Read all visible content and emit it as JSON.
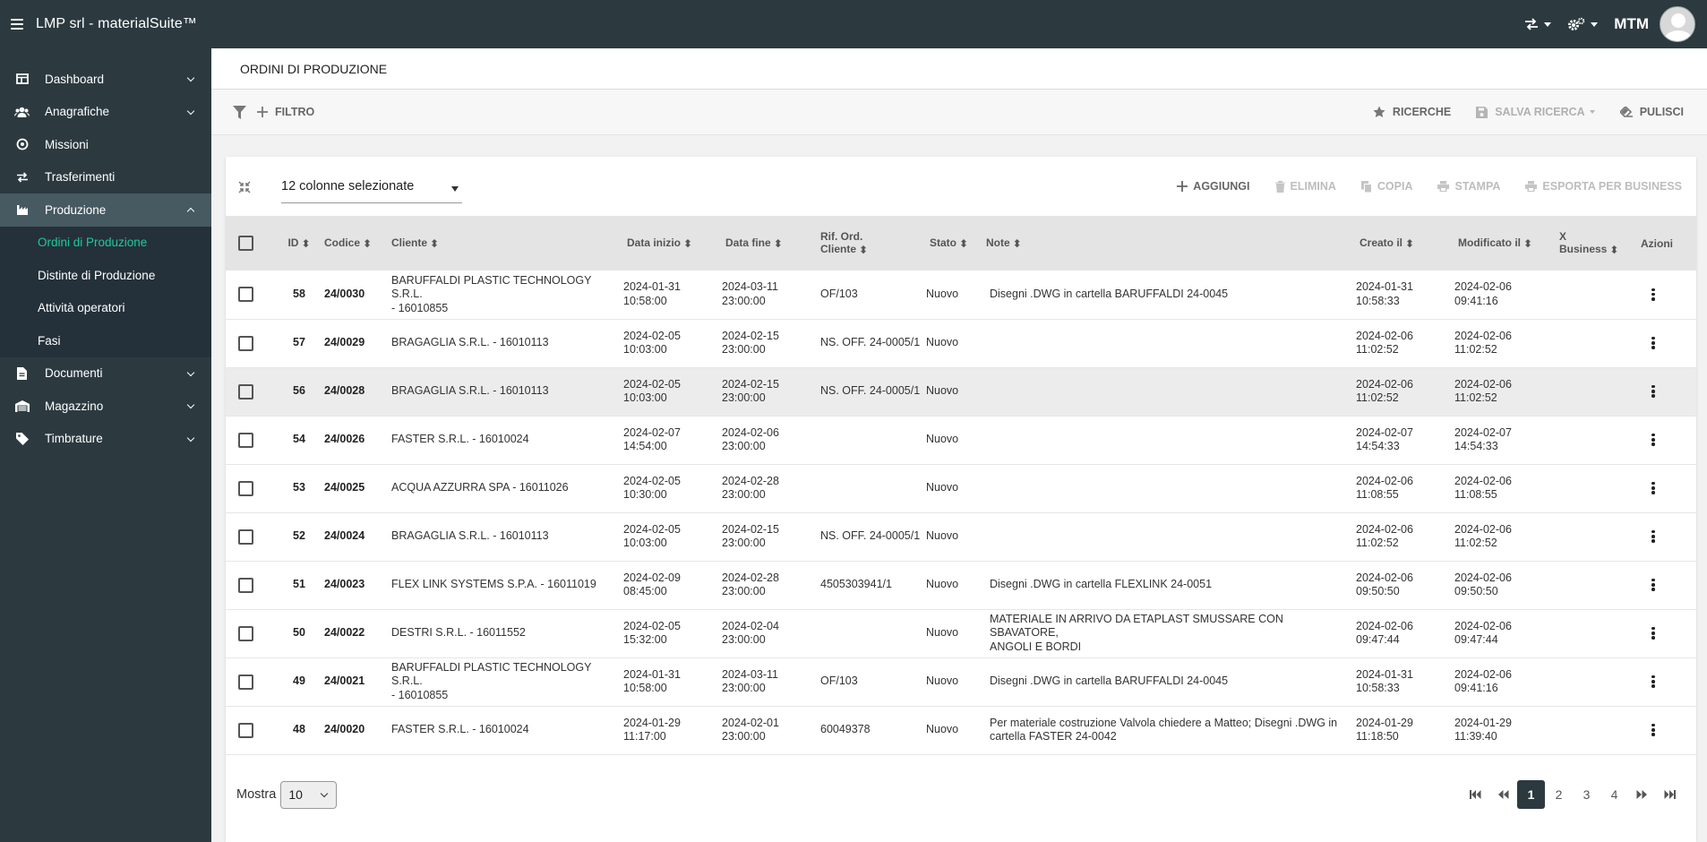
{
  "app": {
    "title": "LMP srl - materialSuite™",
    "user": "MTM"
  },
  "sidebar": {
    "items": [
      {
        "label": "Dashboard",
        "icon": "dashboard-icon",
        "expandable": true
      },
      {
        "label": "Anagrafiche",
        "icon": "users-icon",
        "expandable": true
      },
      {
        "label": "Missioni",
        "icon": "target-icon",
        "expandable": false
      },
      {
        "label": "Trasferimenti",
        "icon": "transfer-icon",
        "expandable": false
      },
      {
        "label": "Produzione",
        "icon": "factory-icon",
        "expandable": true,
        "expanded": true
      }
    ],
    "production_sub": [
      {
        "label": "Ordini di Produzione",
        "current": true
      },
      {
        "label": "Distinte di Produzione"
      },
      {
        "label": "Attività operatori"
      },
      {
        "label": "Fasi"
      }
    ],
    "items_after": [
      {
        "label": "Documenti",
        "icon": "document-icon"
      },
      {
        "label": "Magazzino",
        "icon": "warehouse-icon"
      },
      {
        "label": "Timbrature",
        "icon": "tag-icon"
      }
    ]
  },
  "page": {
    "title": "ORDINI DI PRODUZIONE"
  },
  "filterbar": {
    "filter": "FILTRO",
    "searches": "RICERCHE",
    "save_search": "SALVA RICERCA",
    "clear": "PULISCI"
  },
  "toolbar": {
    "columns_selected": "12 colonne selezionate",
    "add": "AGGIUNGI",
    "delete": "ELIMINA",
    "copy": "COPIA",
    "print": "STAMPA",
    "export": "ESPORTA PER BUSINESS"
  },
  "table": {
    "headers": {
      "id": "ID",
      "code": "Codice",
      "client": "Cliente",
      "start": "Data inizio",
      "end": "Data fine",
      "ref1": "Rif. Ord.",
      "ref2": "Cliente",
      "status": "Stato",
      "notes": "Note",
      "created": "Creato il",
      "modified": "Modificato il",
      "xb1": "X",
      "xb2": "Business",
      "actions": "Azioni"
    },
    "rows": [
      {
        "id": "58",
        "code": "24/0030",
        "client1": "BARUFFALDI PLASTIC TECHNOLOGY S.R.L.",
        "client2": "- 16010855",
        "start1": "2024-01-31",
        "start2": "10:58:00",
        "end1": "2024-03-11",
        "end2": "23:00:00",
        "ref": "OF/103",
        "status": "Nuovo",
        "note1": "Disegni .DWG in cartella BARUFFALDI 24-0045",
        "note2": "",
        "cr1": "2024-01-31",
        "cr2": "10:58:33",
        "md1": "2024-02-06",
        "md2": "09:41:16"
      },
      {
        "id": "57",
        "code": "24/0029",
        "client1": "BRAGAGLIA S.R.L. - 16010113",
        "client2": "",
        "start1": "2024-02-05",
        "start2": "10:03:00",
        "end1": "2024-02-15",
        "end2": "23:00:00",
        "ref": "NS. OFF. 24-0005/1",
        "status": "Nuovo",
        "note1": "",
        "note2": "",
        "cr1": "2024-02-06",
        "cr2": "11:02:52",
        "md1": "2024-02-06",
        "md2": "11:02:52"
      },
      {
        "id": "56",
        "code": "24/0028",
        "client1": "BRAGAGLIA S.R.L. - 16010113",
        "client2": "",
        "start1": "2024-02-05",
        "start2": "10:03:00",
        "end1": "2024-02-15",
        "end2": "23:00:00",
        "ref": "NS. OFF. 24-0005/1",
        "status": "Nuovo",
        "note1": "",
        "note2": "",
        "cr1": "2024-02-06",
        "cr2": "11:02:52",
        "md1": "2024-02-06",
        "md2": "11:02:52"
      },
      {
        "id": "54",
        "code": "24/0026",
        "client1": "FASTER S.R.L. - 16010024",
        "client2": "",
        "start1": "2024-02-07",
        "start2": "14:54:00",
        "end1": "2024-02-06",
        "end2": "23:00:00",
        "ref": "",
        "status": "Nuovo",
        "note1": "",
        "note2": "",
        "cr1": "2024-02-07",
        "cr2": "14:54:33",
        "md1": "2024-02-07",
        "md2": "14:54:33"
      },
      {
        "id": "53",
        "code": "24/0025",
        "client1": "ACQUA AZZURRA SPA - 16011026",
        "client2": "",
        "start1": "2024-02-05",
        "start2": "10:30:00",
        "end1": "2024-02-28",
        "end2": "23:00:00",
        "ref": "",
        "status": "Nuovo",
        "note1": "",
        "note2": "",
        "cr1": "2024-02-06",
        "cr2": "11:08:55",
        "md1": "2024-02-06",
        "md2": "11:08:55"
      },
      {
        "id": "52",
        "code": "24/0024",
        "client1": "BRAGAGLIA S.R.L. - 16010113",
        "client2": "",
        "start1": "2024-02-05",
        "start2": "10:03:00",
        "end1": "2024-02-15",
        "end2": "23:00:00",
        "ref": "NS. OFF. 24-0005/1",
        "status": "Nuovo",
        "note1": "",
        "note2": "",
        "cr1": "2024-02-06",
        "cr2": "11:02:52",
        "md1": "2024-02-06",
        "md2": "11:02:52"
      },
      {
        "id": "51",
        "code": "24/0023",
        "client1": "FLEX LINK SYSTEMS S.P.A. - 16011019",
        "client2": "",
        "start1": "2024-02-09",
        "start2": "08:45:00",
        "end1": "2024-02-28",
        "end2": "23:00:00",
        "ref": "4505303941/1",
        "status": "Nuovo",
        "note1": "Disegni .DWG in cartella FLEXLINK 24-0051",
        "note2": "",
        "cr1": "2024-02-06",
        "cr2": "09:50:50",
        "md1": "2024-02-06",
        "md2": "09:50:50"
      },
      {
        "id": "50",
        "code": "24/0022",
        "client1": "DESTRI S.R.L. - 16011552",
        "client2": "",
        "start1": "2024-02-05",
        "start2": "15:32:00",
        "end1": "2024-02-04",
        "end2": "23:00:00",
        "ref": "",
        "status": "Nuovo",
        "note1": "MATERIALE IN ARRIVO DA ETAPLAST SMUSSARE CON SBAVATORE,",
        "note2": "ANGOLI E BORDI",
        "cr1": "2024-02-06",
        "cr2": "09:47:44",
        "md1": "2024-02-06",
        "md2": "09:47:44"
      },
      {
        "id": "49",
        "code": "24/0021",
        "client1": "BARUFFALDI PLASTIC TECHNOLOGY S.R.L.",
        "client2": "- 16010855",
        "start1": "2024-01-31",
        "start2": "10:58:00",
        "end1": "2024-03-11",
        "end2": "23:00:00",
        "ref": "OF/103",
        "status": "Nuovo",
        "note1": "Disegni .DWG in cartella BARUFFALDI 24-0045",
        "note2": "",
        "cr1": "2024-01-31",
        "cr2": "10:58:33",
        "md1": "2024-02-06",
        "md2": "09:41:16"
      },
      {
        "id": "48",
        "code": "24/0020",
        "client1": "FASTER S.R.L. - 16010024",
        "client2": "",
        "start1": "2024-01-29",
        "start2": "11:17:00",
        "end1": "2024-02-01",
        "end2": "23:00:00",
        "ref": "60049378",
        "status": "Nuovo",
        "note1": "Per materiale costruzione Valvola chiedere a Matteo; Disegni .DWG in",
        "note2": "cartella FASTER 24-0042",
        "cr1": "2024-01-29",
        "cr2": "11:18:50",
        "md1": "2024-01-29",
        "md2": "11:39:40"
      }
    ],
    "highlighted_row": 2
  },
  "footer": {
    "show_label": "Mostra",
    "page_size": "10",
    "pages": [
      "1",
      "2",
      "3",
      "4"
    ],
    "current_page": "1"
  },
  "colors": {
    "topbar": "#2c3a40",
    "sidebar_active": "#475961",
    "submenu": "#24313a",
    "accent": "#1ec99a"
  }
}
